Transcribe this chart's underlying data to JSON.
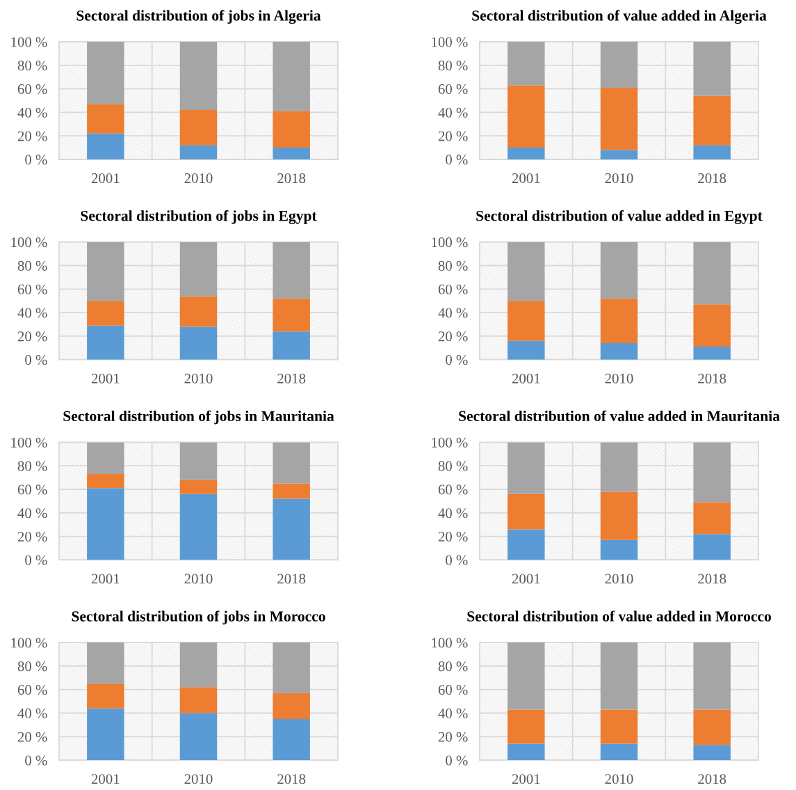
{
  "chart_data": [
    {
      "type": "bar",
      "title": "Sectoral distribution of jobs in Algeria",
      "categories": [
        "2001",
        "2010",
        "2018"
      ],
      "stacked": true,
      "series": [
        {
          "color": "#5b9bd5",
          "values": [
            22,
            12,
            10
          ]
        },
        {
          "color": "#ed7d31",
          "values": [
            25,
            30,
            31
          ]
        },
        {
          "color": "#a5a5a5",
          "values": [
            53,
            58,
            59
          ]
        }
      ],
      "ylim": [
        0,
        100
      ],
      "yticks": [
        {
          "value": 0,
          "label": "0 %"
        },
        {
          "value": 20,
          "label": "20 %"
        },
        {
          "value": 40,
          "label": "40 %"
        },
        {
          "value": 60,
          "label": "60 %"
        },
        {
          "value": 80,
          "label": "80 %"
        },
        {
          "value": 100,
          "label": "100 %"
        }
      ],
      "grid": true
    },
    {
      "type": "bar",
      "title": "Sectoral distribution of value added in Algeria",
      "categories": [
        "2001",
        "2010",
        "2018"
      ],
      "stacked": true,
      "series": [
        {
          "color": "#5b9bd5",
          "values": [
            10,
            8,
            12
          ]
        },
        {
          "color": "#ed7d31",
          "values": [
            53,
            53,
            42
          ]
        },
        {
          "color": "#a5a5a5",
          "values": [
            37,
            39,
            46
          ]
        }
      ],
      "ylim": [
        0,
        100
      ],
      "yticks": [
        {
          "value": 0,
          "label": "0 %"
        },
        {
          "value": 20,
          "label": "20 %"
        },
        {
          "value": 40,
          "label": "40 %"
        },
        {
          "value": 60,
          "label": "60 %"
        },
        {
          "value": 80,
          "label": "80 %"
        },
        {
          "value": 100,
          "label": "100 %"
        }
      ],
      "grid": true
    },
    {
      "type": "bar",
      "title": "Sectoral distribution of jobs in Egypt",
      "categories": [
        "2001",
        "2010",
        "2018"
      ],
      "stacked": true,
      "series": [
        {
          "color": "#5b9bd5",
          "values": [
            29,
            28,
            24
          ]
        },
        {
          "color": "#ed7d31",
          "values": [
            21,
            26,
            28
          ]
        },
        {
          "color": "#a5a5a5",
          "values": [
            50,
            46,
            48
          ]
        }
      ],
      "ylim": [
        0,
        100
      ],
      "yticks": [
        {
          "value": 0,
          "label": "0 %"
        },
        {
          "value": 20,
          "label": "20 %"
        },
        {
          "value": 40,
          "label": "40 %"
        },
        {
          "value": 60,
          "label": "60 %"
        },
        {
          "value": 80,
          "label": "80 %"
        },
        {
          "value": 100,
          "label": "100 %"
        }
      ],
      "grid": true
    },
    {
      "type": "bar",
      "title": "Sectoral distribution of value added in Egypt",
      "categories": [
        "2001",
        "2010",
        "2018"
      ],
      "stacked": true,
      "series": [
        {
          "color": "#5b9bd5",
          "values": [
            16,
            14,
            11
          ]
        },
        {
          "color": "#ed7d31",
          "values": [
            34,
            38,
            36
          ]
        },
        {
          "color": "#a5a5a5",
          "values": [
            50,
            48,
            53
          ]
        }
      ],
      "ylim": [
        0,
        100
      ],
      "yticks": [
        {
          "value": 0,
          "label": "0 %"
        },
        {
          "value": 20,
          "label": "20 %"
        },
        {
          "value": 40,
          "label": "40 %"
        },
        {
          "value": 60,
          "label": "60 %"
        },
        {
          "value": 80,
          "label": "80 %"
        },
        {
          "value": 100,
          "label": "100 %"
        }
      ],
      "grid": true
    },
    {
      "type": "bar",
      "title": "Sectoral distribution of jobs in Mauritania",
      "categories": [
        "2001",
        "2010",
        "2018"
      ],
      "stacked": true,
      "series": [
        {
          "color": "#5b9bd5",
          "values": [
            61,
            56,
            52
          ]
        },
        {
          "color": "#ed7d31",
          "values": [
            12,
            12,
            13
          ]
        },
        {
          "color": "#a5a5a5",
          "values": [
            27,
            32,
            35
          ]
        }
      ],
      "ylim": [
        0,
        100
      ],
      "yticks": [
        {
          "value": 0,
          "label": "0 %"
        },
        {
          "value": 20,
          "label": "20 %"
        },
        {
          "value": 40,
          "label": "40 %"
        },
        {
          "value": 60,
          "label": "60 %"
        },
        {
          "value": 80,
          "label": "80 %"
        },
        {
          "value": 100,
          "label": "100 %"
        }
      ],
      "grid": true
    },
    {
      "type": "bar",
      "title": "Sectoral distribution of value added in Mauritania",
      "categories": [
        "2001",
        "2010",
        "2018"
      ],
      "stacked": true,
      "series": [
        {
          "color": "#5b9bd5",
          "values": [
            26,
            17,
            22
          ]
        },
        {
          "color": "#ed7d31",
          "values": [
            30,
            41,
            27
          ]
        },
        {
          "color": "#a5a5a5",
          "values": [
            44,
            42,
            51
          ]
        }
      ],
      "ylim": [
        0,
        100
      ],
      "yticks": [
        {
          "value": 0,
          "label": "0 %"
        },
        {
          "value": 20,
          "label": "20 %"
        },
        {
          "value": 40,
          "label": "40 %"
        },
        {
          "value": 60,
          "label": "60 %"
        },
        {
          "value": 80,
          "label": "80 %"
        },
        {
          "value": 100,
          "label": "100 %"
        }
      ],
      "grid": true
    },
    {
      "type": "bar",
      "title": "Sectoral distribution of jobs in Morocco",
      "categories": [
        "2001",
        "2010",
        "2018"
      ],
      "stacked": true,
      "series": [
        {
          "color": "#5b9bd5",
          "values": [
            44,
            40,
            35
          ]
        },
        {
          "color": "#ed7d31",
          "values": [
            21,
            22,
            22
          ]
        },
        {
          "color": "#a5a5a5",
          "values": [
            35,
            38,
            43
          ]
        }
      ],
      "ylim": [
        0,
        100
      ],
      "yticks": [
        {
          "value": 0,
          "label": "0 %"
        },
        {
          "value": 20,
          "label": "20 %"
        },
        {
          "value": 40,
          "label": "40 %"
        },
        {
          "value": 60,
          "label": "60 %"
        },
        {
          "value": 80,
          "label": "80 %"
        },
        {
          "value": 100,
          "label": "100 %"
        }
      ],
      "grid": true
    },
    {
      "type": "bar",
      "title": "Sectoral distribution of value added in Morocco",
      "categories": [
        "2001",
        "2010",
        "2018"
      ],
      "stacked": true,
      "series": [
        {
          "color": "#5b9bd5",
          "values": [
            14,
            14,
            13
          ]
        },
        {
          "color": "#ed7d31",
          "values": [
            29,
            29,
            30
          ]
        },
        {
          "color": "#a5a5a5",
          "values": [
            57,
            57,
            57
          ]
        }
      ],
      "ylim": [
        0,
        100
      ],
      "yticks": [
        {
          "value": 0,
          "label": "0 %"
        },
        {
          "value": 20,
          "label": "20 %"
        },
        {
          "value": 40,
          "label": "40 %"
        },
        {
          "value": 60,
          "label": "60 %"
        },
        {
          "value": 80,
          "label": "80 %"
        },
        {
          "value": 100,
          "label": "100 %"
        }
      ],
      "grid": true
    }
  ]
}
